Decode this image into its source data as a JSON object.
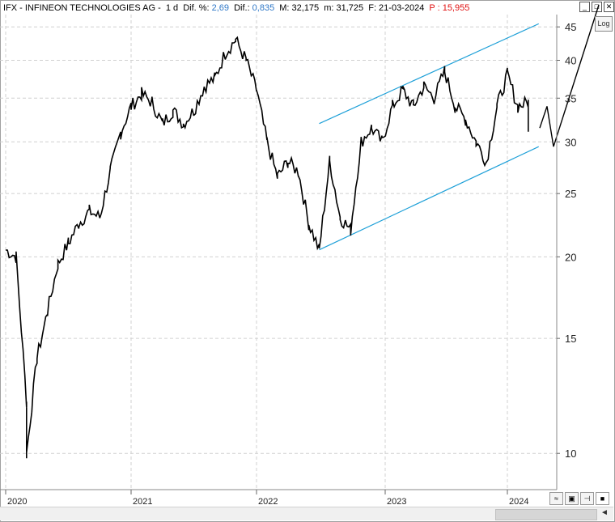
{
  "header": {
    "symbol_name": "IFX - INFINEON TECHNOLOGIES AG -",
    "timeframe": "1 d",
    "dif_pct_label": "Dif. %:",
    "dif_pct_value": "2,69",
    "dif_label": "Dif.:",
    "dif_value": "0,835",
    "max_label": "M: 32,175",
    "min_label": "m: 31,725",
    "date_label": "F: 21-03-2024",
    "p_label": "P : 15,955"
  },
  "buttons": {
    "log": "Log"
  },
  "colors": {
    "price": "#000000",
    "channel": "#1ea0d8",
    "grid": "#d0d0d0",
    "accent_blue": "#2f78c8",
    "accent_red": "#e01010"
  },
  "icons": [
    "window-minimize-icon",
    "window-maximize-icon",
    "window-close-icon",
    "save-icon",
    "arrow-icon",
    "square-icon",
    "scroll-left-icon"
  ],
  "chart_data": {
    "type": "line",
    "y_scale": "log",
    "ylim": [
      8.8,
      47
    ],
    "y_ticks": [
      10,
      15,
      20,
      25,
      30,
      35,
      40,
      45
    ],
    "x_ticks": [
      "2020",
      "2021",
      "2022",
      "2023",
      "2024"
    ],
    "grid": true,
    "series": [
      {
        "values": [
          [
            "2020-01",
            20.5
          ],
          [
            "2020-02",
            20.0
          ],
          [
            "2020-03",
            12.0
          ],
          [
            "2020-03",
            10.0
          ],
          [
            "2020-04",
            14.0
          ],
          [
            "2020-05",
            16.5
          ],
          [
            "2020-06",
            19.5
          ],
          [
            "2020-07",
            21.0
          ],
          [
            "2020-08",
            22.5
          ],
          [
            "2020-09",
            23.5
          ],
          [
            "2020-10",
            23.0
          ],
          [
            "2020-11",
            27.0
          ],
          [
            "2020-12",
            31.0
          ],
          [
            "2021-01",
            34.0
          ],
          [
            "2021-02",
            35.5
          ],
          [
            "2021-03",
            34.5
          ],
          [
            "2021-04",
            32.0
          ],
          [
            "2021-05",
            33.5
          ],
          [
            "2021-06",
            32.0
          ],
          [
            "2021-07",
            33.5
          ],
          [
            "2021-08",
            36.5
          ],
          [
            "2021-09",
            37.5
          ],
          [
            "2021-10",
            41.0
          ],
          [
            "2021-11",
            43.0
          ],
          [
            "2021-12",
            40.0
          ],
          [
            "2022-01",
            36.0
          ],
          [
            "2022-02",
            30.0
          ],
          [
            "2022-03",
            26.5
          ],
          [
            "2022-04",
            28.0
          ],
          [
            "2022-05",
            27.0
          ],
          [
            "2022-06",
            22.5
          ],
          [
            "2022-07",
            20.5
          ],
          [
            "2022-08",
            28.0
          ],
          [
            "2022-09",
            23.0
          ],
          [
            "2022-10",
            22.0
          ],
          [
            "2022-11",
            30.0
          ],
          [
            "2022-12",
            31.5
          ],
          [
            "2023-01",
            30.0
          ],
          [
            "2023-02",
            34.0
          ],
          [
            "2023-03",
            36.0
          ],
          [
            "2023-04",
            34.0
          ],
          [
            "2023-05",
            36.5
          ],
          [
            "2023-06",
            35.0
          ],
          [
            "2023-07",
            38.5
          ],
          [
            "2023-08",
            34.0
          ],
          [
            "2023-09",
            32.5
          ],
          [
            "2023-10",
            30.0
          ],
          [
            "2023-11",
            28.0
          ],
          [
            "2023-12",
            34.0
          ],
          [
            "2024-01",
            38.0
          ],
          [
            "2024-02",
            34.0
          ],
          [
            "2024-03",
            34.5
          ],
          [
            "2024-03",
            31.5
          ]
        ]
      }
    ],
    "channel": {
      "upper": [
        [
          "2022-07",
          32.0
        ],
        [
          "2024-04",
          45.5
        ]
      ],
      "lower": [
        [
          "2022-07",
          20.5
        ],
        [
          "2024-04",
          29.5
        ]
      ]
    },
    "projection": [
      [
        "2024-03",
        31.5
      ],
      [
        "2024-03",
        34.0
      ],
      [
        "2024-04",
        29.5
      ],
      [
        "2024-05",
        45.5
      ]
    ]
  }
}
